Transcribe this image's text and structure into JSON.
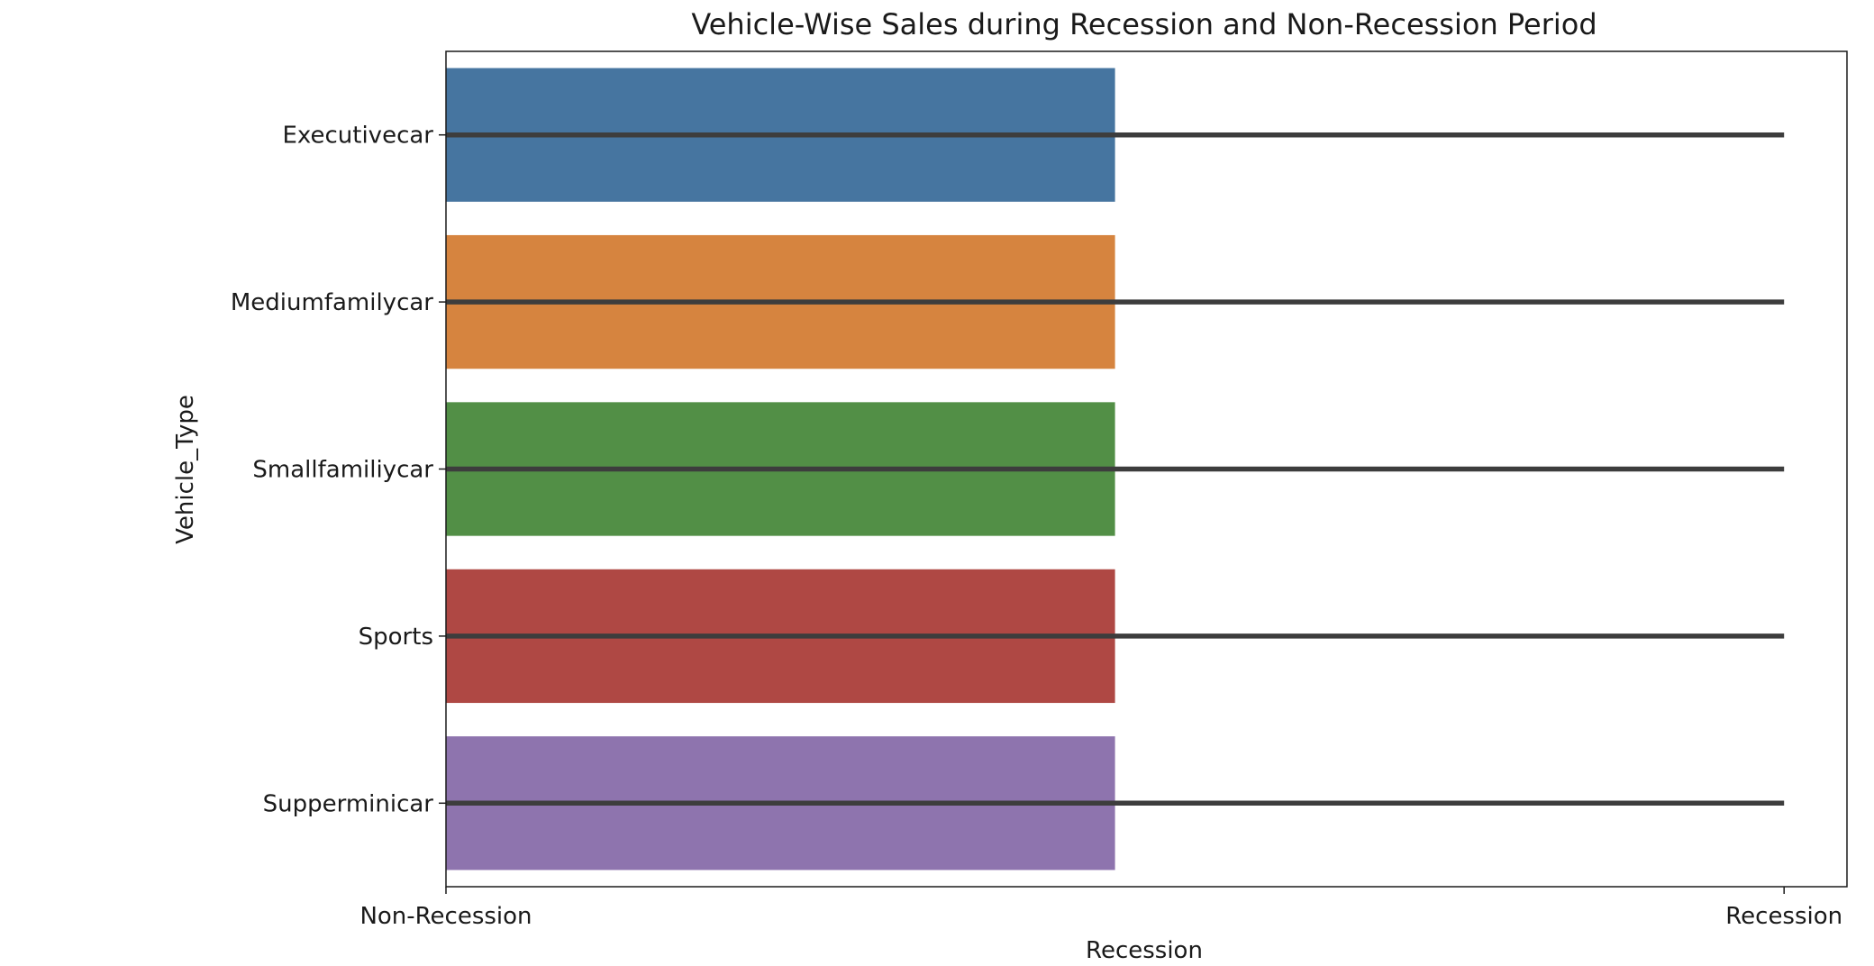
{
  "chart_data": {
    "type": "bar",
    "orientation": "horizontal",
    "title": "Vehicle-Wise Sales during Recession and Non-Recession Period",
    "xlabel": "Recession",
    "ylabel": "Vehicle_Type",
    "categories": [
      "Executivecar",
      "Mediumfamilycar",
      "Smallfamiliycar",
      "Sports",
      "Supperminicar"
    ],
    "x_ticks": [
      {
        "label": "Non-Recession",
        "value": 0
      },
      {
        "label": "Recession",
        "value": 1
      }
    ],
    "xlim": [
      0,
      1.047
    ],
    "values": [
      0.5,
      0.5,
      0.5,
      0.5,
      0.5
    ],
    "error_bars": [
      {
        "low": 0,
        "high": 1
      },
      {
        "low": 0,
        "high": 1
      },
      {
        "low": 0,
        "high": 1
      },
      {
        "low": 0,
        "high": 1
      },
      {
        "low": 0,
        "high": 1
      }
    ],
    "colors": [
      "#4675a0",
      "#d6843f",
      "#528f46",
      "#af4844",
      "#8e74ae"
    ],
    "error_color": "#3d3d3d",
    "grid": false,
    "legend": false
  }
}
